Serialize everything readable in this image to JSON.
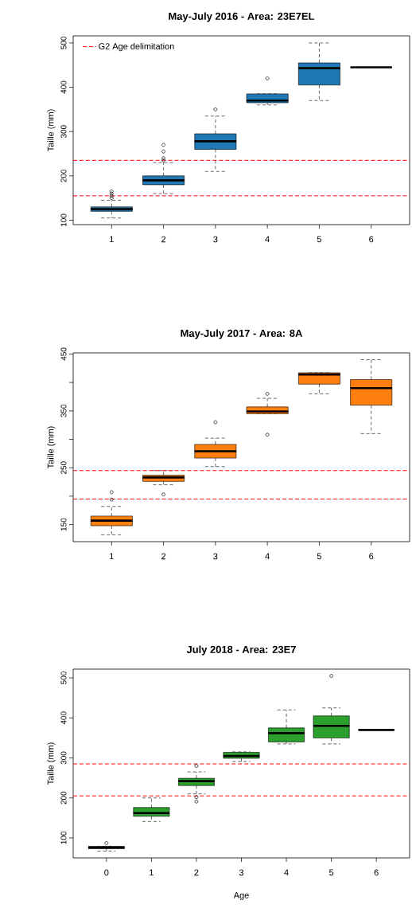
{
  "chart_data": [
    {
      "type": "box",
      "title": "May-July 2016 - Area: 23E7EL",
      "ylabel": "Taille (mm)",
      "categories": [
        "1",
        "2",
        "3",
        "4",
        "5",
        "6"
      ],
      "color": "#1f77b4",
      "ylim": [
        90,
        516
      ],
      "yticks": [
        100,
        200,
        300,
        400,
        500
      ],
      "legend": "top left",
      "boxes": [
        {
          "low": 105,
          "q1": 120,
          "median": 125,
          "q3": 130,
          "high": 145,
          "outliers": [
            150,
            155,
            160,
            165
          ]
        },
        {
          "low": 160,
          "q1": 180,
          "median": 190,
          "q3": 200,
          "high": 230,
          "outliers": [
            235,
            240,
            255,
            270
          ]
        },
        {
          "low": 210,
          "q1": 260,
          "median": 278,
          "q3": 295,
          "high": 335,
          "outliers": [
            350
          ]
        },
        {
          "low": 360,
          "q1": 365,
          "median": 370,
          "q3": 385,
          "high": 385,
          "outliers": [
            420
          ]
        },
        {
          "low": 370,
          "q1": 405,
          "median": 443,
          "q3": 455,
          "high": 500
        },
        {
          "low": 445,
          "q1": 445,
          "median": 445,
          "q3": 445,
          "high": 445
        }
      ],
      "ref_lines": [
        {
          "axis": "y",
          "value": 235,
          "label": "G2 Age delimitation",
          "color": "#ff0000",
          "line_style": "dashed"
        },
        {
          "axis": "y",
          "value": 155,
          "color": "#ff0000",
          "line_style": "dashed"
        }
      ]
    },
    {
      "type": "box",
      "title": "May-July 2017 - Area: 8A",
      "ylabel": "Taille (mm)",
      "categories": [
        "1",
        "2",
        "3",
        "4",
        "5",
        "6"
      ],
      "color": "#ff7f0e",
      "ylim": [
        120,
        452
      ],
      "yticks": [
        150,
        {
          "value": 200,
          "label": null
        },
        250,
        {
          "value": 300,
          "label": null
        },
        350,
        {
          "value": 400,
          "label": null
        },
        450
      ],
      "boxes": [
        {
          "low": 132,
          "q1": 148,
          "median": 157,
          "q3": 165,
          "high": 182,
          "outliers": [
            194,
            207
          ]
        },
        {
          "low": 220,
          "q1": 226,
          "median": 233,
          "q3": 237,
          "high": 245,
          "outliers": [
            203
          ]
        },
        {
          "low": 252,
          "q1": 267,
          "median": 279,
          "q3": 291,
          "high": 302,
          "outliers": [
            330
          ]
        },
        {
          "low": 345,
          "q1": 345,
          "median": 349,
          "q3": 357,
          "high": 372,
          "outliers": [
            380,
            308
          ]
        },
        {
          "low": 380,
          "q1": 397,
          "median": 414,
          "q3": 417,
          "high": 417
        },
        {
          "low": 310,
          "q1": 360,
          "median": 390,
          "q3": 405,
          "high": 440
        }
      ],
      "ref_lines": [
        {
          "axis": "y",
          "value": 245,
          "color": "#ff0000",
          "line_style": "dashed"
        },
        {
          "axis": "y",
          "value": 195,
          "color": "#ff0000",
          "line_style": "dashed"
        }
      ]
    },
    {
      "type": "box",
      "title": "July 2018 - Area: 23E7",
      "xlabel": "Age",
      "ylabel": "Taille (mm)",
      "categories": [
        "0",
        "1",
        "2",
        "3",
        "4",
        "5",
        "6"
      ],
      "color": "#2ca02c",
      "ylim": [
        50,
        522
      ],
      "yticks": [
        100,
        200,
        300,
        400,
        500
      ],
      "boxes": [
        {
          "low": 67,
          "q1": 73,
          "median": 76,
          "q3": 79,
          "high": 79,
          "outliers": [
            87
          ]
        },
        {
          "low": 141,
          "q1": 154,
          "median": 162,
          "q3": 176,
          "high": 200
        },
        {
          "low": 210,
          "q1": 231,
          "median": 242,
          "q3": 249,
          "high": 265,
          "outliers": [
            280,
            202,
            191
          ]
        },
        {
          "low": 291,
          "q1": 299,
          "median": 305,
          "q3": 314,
          "high": 315
        },
        {
          "low": 335,
          "q1": 340,
          "median": 362,
          "q3": 375,
          "high": 420
        },
        {
          "low": 335,
          "q1": 350,
          "median": 380,
          "q3": 405,
          "high": 425,
          "outliers": [
            505
          ]
        },
        {
          "low": 370,
          "q1": 370,
          "median": 370,
          "q3": 370,
          "high": 370
        }
      ],
      "ref_lines": [
        {
          "axis": "y",
          "value": 285,
          "color": "#ff0000",
          "line_style": "dashed"
        },
        {
          "axis": "y",
          "value": 205,
          "color": "#ff0000",
          "line_style": "dashed"
        }
      ]
    }
  ]
}
